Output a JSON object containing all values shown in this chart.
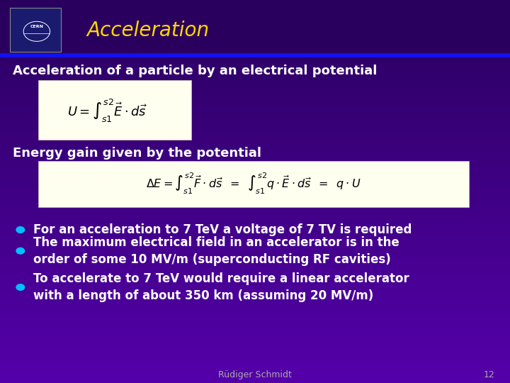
{
  "bg_color_top": "#2a005f",
  "bg_color_bottom": "#5500aa",
  "title": "Acceleration",
  "title_color": "#FFD700",
  "title_fontsize": 20,
  "header_line_color": "#2222FF",
  "subtitle1": "Acceleration of a particle by an electrical potential",
  "subtitle1_color": "#FFFFFF",
  "subtitle1_fontsize": 13,
  "formula1_box_color": "#FFFFF0",
  "formula2_label": "Energy gain given by the potential",
  "formula2_label_color": "#FFFFFF",
  "formula2_label_fontsize": 13,
  "formula2_box_color": "#FFFFF0",
  "bullet_color": "#00BFFF",
  "bullet_fontsize": 12,
  "bullets": [
    "For an acceleration to 7 TeV a voltage of 7 TV is required",
    "The maximum electrical field in an accelerator is in the\norder of some 10 MV/m (superconducting RF cavities)",
    "To accelerate to 7 TeV would require a linear accelerator\nwith a length of about 350 km (assuming 20 MV/m)"
  ],
  "footer_text": "Rüdiger Schmidt",
  "footer_page": "12",
  "footer_color": "#AAAAAA",
  "footer_fontsize": 9
}
